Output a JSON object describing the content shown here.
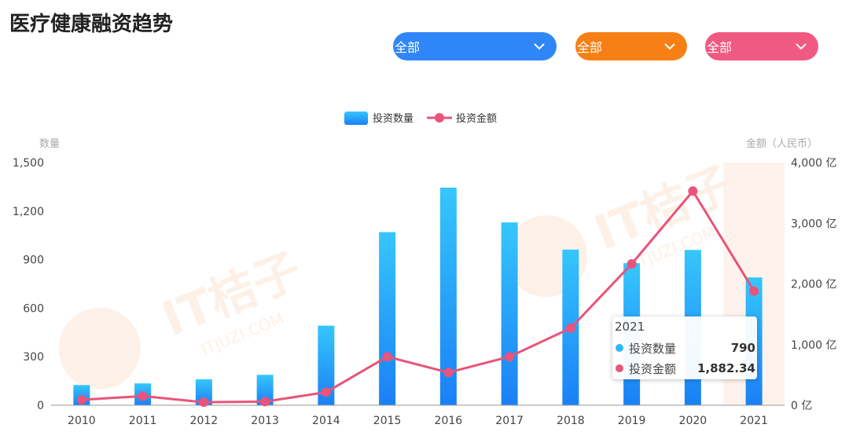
{
  "page": {
    "title": "医疗健康融资趋势"
  },
  "filters": [
    {
      "label": "全部",
      "color": "#2f86f7"
    },
    {
      "label": "全部",
      "color": "#f78016"
    },
    {
      "label": "全部",
      "color": "#f05a82"
    }
  ],
  "watermark": {
    "brand": "IT桔子",
    "domain": "ITJUZI.COM"
  },
  "tooltip": {
    "title": "2021",
    "rows": [
      {
        "name": "投资数量",
        "value": "790",
        "color": "#2fb8fb"
      },
      {
        "name": "投资金额",
        "value": "1,882.34",
        "color": "#e8547a"
      }
    ]
  },
  "chart_data": {
    "type": "bar",
    "categories": [
      "2010",
      "2011",
      "2012",
      "2013",
      "2014",
      "2015",
      "2016",
      "2017",
      "2018",
      "2019",
      "2020",
      "2021"
    ],
    "series": [
      {
        "name": "投资数量",
        "type": "bar",
        "axis": "left",
        "values": [
          125,
          135,
          160,
          188,
          492,
          1070,
          1345,
          1130,
          962,
          878,
          960,
          790
        ],
        "color_top": "#36c6fc",
        "color_bottom": "#1a80f6"
      },
      {
        "name": "投资金额",
        "type": "line",
        "axis": "right",
        "values": [
          90,
          150,
          50,
          60,
          215,
          800,
          540,
          800,
          1270,
          2330,
          3530,
          1882.34
        ],
        "color": "#e8547a"
      }
    ],
    "y_left": {
      "label": "数量",
      "min": 0,
      "max": 1500,
      "ticks": [
        "0",
        "300",
        "600",
        "900",
        "1,200",
        "1,500"
      ],
      "tick_values": [
        0,
        300,
        600,
        900,
        1200,
        1500
      ]
    },
    "y_right": {
      "label": "金额（人民币）",
      "min": 0,
      "max": 4000,
      "ticks": [
        "0 亿",
        "1,000 亿",
        "2,000 亿",
        "3,000 亿",
        "4,000 亿"
      ],
      "tick_values": [
        0,
        1000,
        2000,
        3000,
        4000
      ]
    },
    "highlight_category": "2021",
    "legend": {
      "position": "top-center"
    },
    "grid": false
  }
}
